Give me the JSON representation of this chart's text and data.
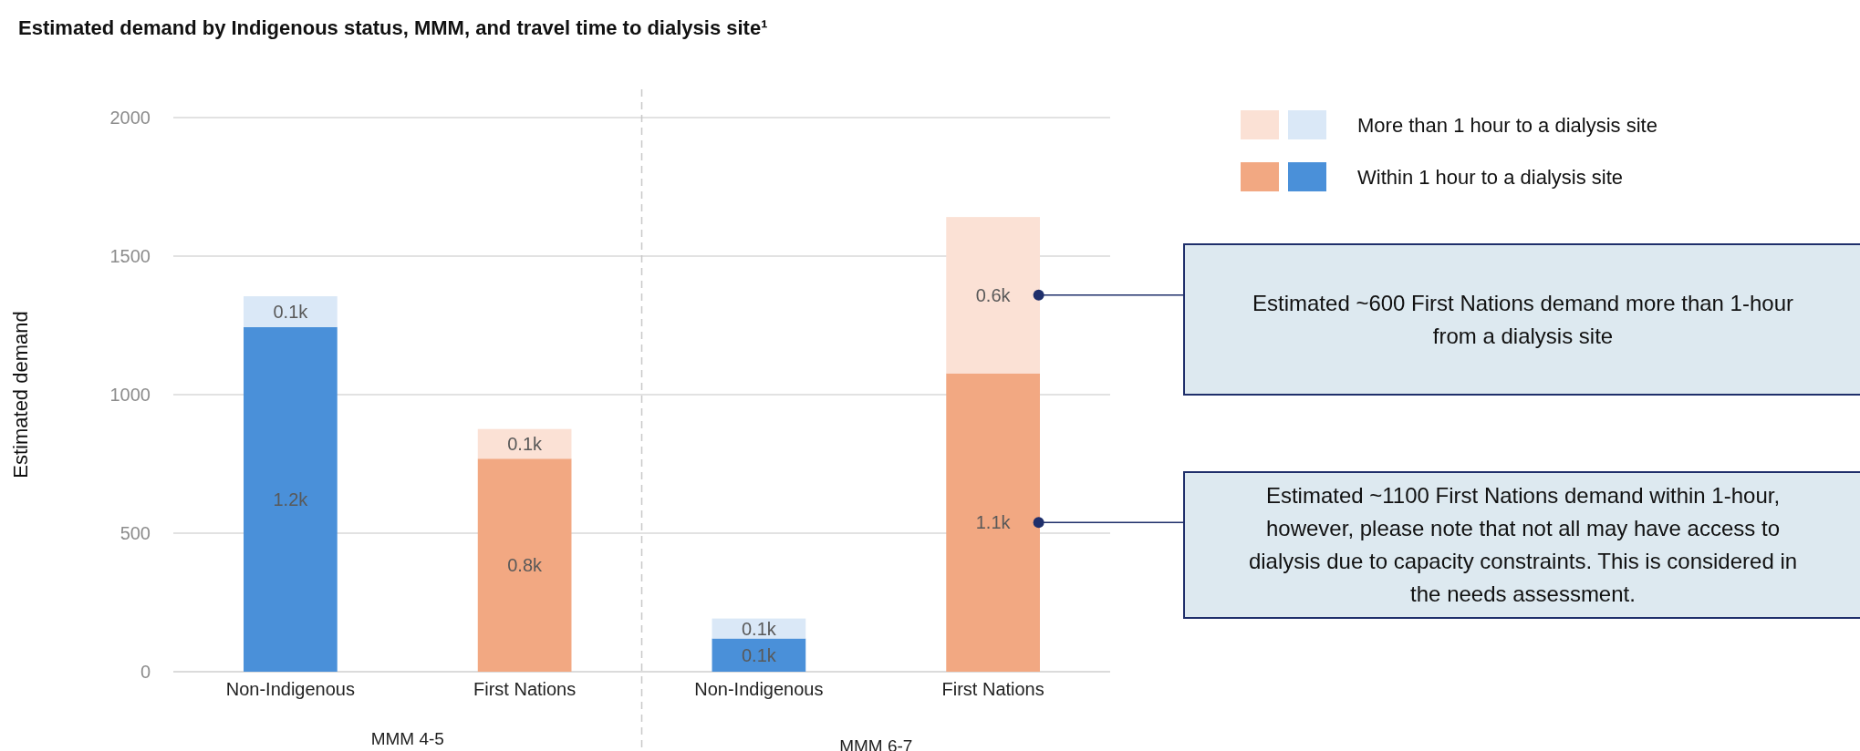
{
  "chart_data": {
    "type": "bar",
    "stacked": true,
    "title": "Estimated demand by Indigenous status, MMM, and travel time to dialysis site¹",
    "ylabel": "Estimated demand",
    "categories": [
      "Non-Indigenous",
      "First Nations",
      "Non-Indigenous",
      "First Nations"
    ],
    "series": [
      {
        "name": "Within 1 hour to a dialysis site",
        "colors": [
          "#4a90d9",
          "#f2a882",
          "#4a90d9",
          "#f2a882"
        ],
        "values": [
          1244,
          769,
          120,
          1077
        ],
        "value_labels": [
          "1.2k",
          "0.8k",
          "0.1k",
          "1.1k"
        ]
      },
      {
        "name": "More than 1 hour to a dialysis site",
        "colors": [
          "#dae8f7",
          "#fbe1d5",
          "#dae8f7",
          "#fbe1d5"
        ],
        "values": [
          111,
          107,
          72,
          564
        ],
        "value_labels": [
          "0.1k",
          "0.1k",
          "0.1k",
          "0.6k"
        ]
      }
    ],
    "ylim": [
      0,
      2000
    ],
    "yticks": [
      0,
      500,
      1000,
      1500,
      2000
    ],
    "grid": "y",
    "legend": "top right",
    "annotations": [
      "MMM 4-5",
      "MMM 6-7",
      "Estimated ~600 First Nations demand more than 1-hour from a dialysis site",
      "Estimated ~1100 First Nations demand within 1-hour, however, please note that not all may have access to dialysis due to capacity constraints. This is considered in the needs assessment."
    ]
  }
}
